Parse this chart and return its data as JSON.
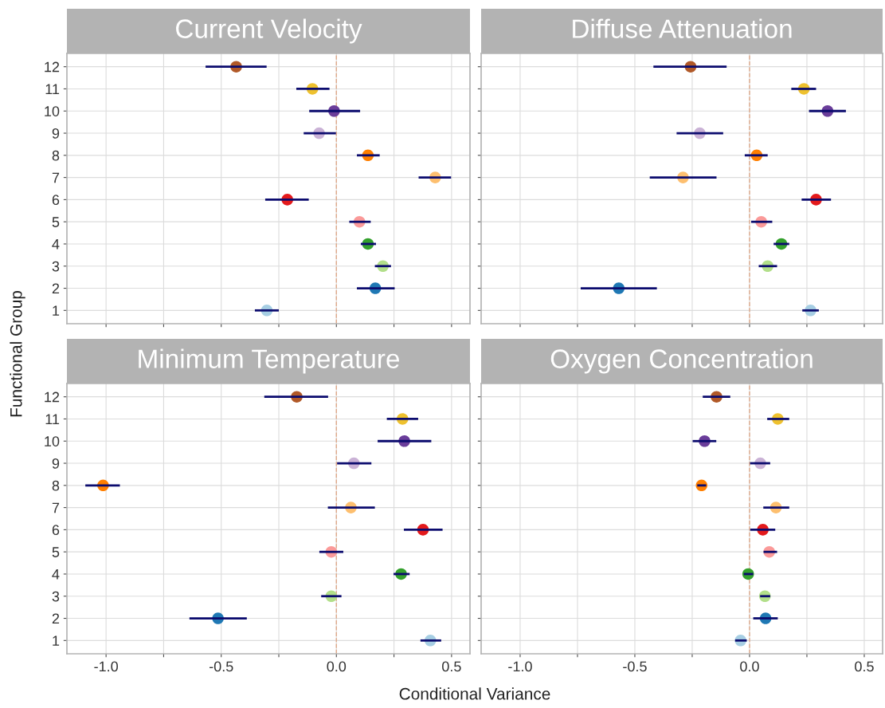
{
  "chart_data": [
    {
      "type": "scatter",
      "orientation": "horizontal",
      "title": "Current Velocity",
      "ylabel": "Functional Group",
      "tick_labels": "y",
      "grid": true,
      "marker": "circle",
      "categories": [
        "12",
        "11",
        "10",
        "9",
        "8",
        "7",
        "6",
        "5",
        "4",
        "3",
        "2",
        "1"
      ],
      "values": [
        -0.435,
        -0.104,
        -0.01,
        -0.075,
        0.137,
        0.429,
        -0.213,
        0.1,
        0.137,
        0.202,
        0.169,
        -0.302
      ],
      "errors": [
        [
          -0.568,
          -0.303
        ],
        [
          -0.174,
          -0.03
        ],
        [
          -0.118,
          0.103
        ],
        [
          -0.142,
          -0.002
        ],
        [
          0.089,
          0.188
        ],
        [
          0.357,
          0.498
        ],
        [
          -0.309,
          -0.12
        ],
        [
          0.056,
          0.149
        ],
        [
          0.106,
          0.172
        ],
        [
          0.167,
          0.237
        ],
        [
          0.089,
          0.253
        ],
        [
          -0.354,
          -0.25
        ]
      ],
      "colors": [
        "#b15928",
        "#eec12e",
        "#6a3d9a",
        "#cab2d6",
        "#ff7f00",
        "#fdbf6f",
        "#e31a1c",
        "#fb9a99",
        "#33a02c",
        "#b2df8a",
        "#1f78b4",
        "#a6cee3"
      ],
      "xlim": [
        -1.17,
        0.58
      ],
      "xticks": [
        {
          "value": -1.0,
          "label": null
        },
        {
          "value": -0.75,
          "label": null
        },
        {
          "value": -0.5,
          "label": null
        },
        {
          "value": -0.25,
          "label": null
        },
        {
          "value": 0.0,
          "label": null
        },
        {
          "value": 0.25,
          "label": null
        },
        {
          "value": 0.5,
          "label": null
        }
      ],
      "ref_lines": [
        {
          "axis": "x",
          "value": 0,
          "color": "#dfa98a",
          "line_style": "dashed"
        }
      ]
    },
    {
      "type": "scatter",
      "orientation": "horizontal",
      "title": "Diffuse Attenuation",
      "tick_labels": false,
      "grid": true,
      "marker": "circle",
      "categories": [
        "12",
        "11",
        "10",
        "9",
        "8",
        "7",
        "6",
        "5",
        "4",
        "3",
        "2",
        "1"
      ],
      "values": [
        -0.257,
        0.237,
        0.34,
        -0.217,
        0.031,
        -0.29,
        0.29,
        0.051,
        0.139,
        0.079,
        -0.57,
        0.266
      ],
      "errors": [
        [
          -0.419,
          -0.1
        ],
        [
          0.182,
          0.29
        ],
        [
          0.259,
          0.42
        ],
        [
          -0.318,
          -0.115
        ],
        [
          -0.021,
          0.079
        ],
        [
          -0.435,
          -0.144
        ],
        [
          0.227,
          0.355
        ],
        [
          0.007,
          0.099
        ],
        [
          0.105,
          0.173
        ],
        [
          0.04,
          0.12
        ],
        [
          -0.736,
          -0.404
        ],
        [
          0.23,
          0.302
        ]
      ],
      "colors": [
        "#b15928",
        "#eec12e",
        "#6a3d9a",
        "#cab2d6",
        "#ff7f00",
        "#fdbf6f",
        "#e31a1c",
        "#fb9a99",
        "#33a02c",
        "#b2df8a",
        "#1f78b4",
        "#a6cee3"
      ],
      "xlim": [
        -1.17,
        0.58
      ],
      "xticks": [
        {
          "value": -1.0,
          "label": null
        },
        {
          "value": -0.75,
          "label": null
        },
        {
          "value": -0.5,
          "label": null
        },
        {
          "value": -0.25,
          "label": null
        },
        {
          "value": 0.0,
          "label": null
        },
        {
          "value": 0.25,
          "label": null
        },
        {
          "value": 0.5,
          "label": null
        }
      ],
      "ref_lines": [
        {
          "axis": "x",
          "value": 0,
          "color": "#dfa98a",
          "line_style": "dashed"
        }
      ]
    },
    {
      "type": "scatter",
      "orientation": "horizontal",
      "title": "Minimum Temperature",
      "xlabel": "Conditional Variance",
      "grid": true,
      "marker": "circle",
      "categories": [
        "12",
        "11",
        "10",
        "9",
        "8",
        "7",
        "6",
        "5",
        "4",
        "3",
        "2",
        "1"
      ],
      "values": [
        -0.172,
        0.287,
        0.295,
        0.076,
        -1.013,
        0.063,
        0.376,
        -0.022,
        0.281,
        -0.022,
        -0.514,
        0.408
      ],
      "errors": [
        [
          -0.313,
          -0.036
        ],
        [
          0.219,
          0.355
        ],
        [
          0.179,
          0.412
        ],
        [
          0.003,
          0.152
        ],
        [
          -1.09,
          -0.94
        ],
        [
          -0.037,
          0.167
        ],
        [
          0.293,
          0.461
        ],
        [
          -0.074,
          0.03
        ],
        [
          0.248,
          0.318
        ],
        [
          -0.066,
          0.022
        ],
        [
          -0.638,
          -0.389
        ],
        [
          0.365,
          0.455
        ]
      ],
      "colors": [
        "#b15928",
        "#eec12e",
        "#6a3d9a",
        "#cab2d6",
        "#ff7f00",
        "#fdbf6f",
        "#e31a1c",
        "#fb9a99",
        "#33a02c",
        "#b2df8a",
        "#1f78b4",
        "#a6cee3"
      ],
      "xlim": [
        -1.17,
        0.58
      ],
      "xticks": [
        {
          "value": -1.0,
          "label": "-1.0"
        },
        {
          "value": -0.75,
          "label": null
        },
        {
          "value": -0.5,
          "label": "-0.5"
        },
        {
          "value": -0.25,
          "label": null
        },
        {
          "value": 0.0,
          "label": "0.0"
        },
        {
          "value": 0.25,
          "label": null
        },
        {
          "value": 0.5,
          "label": "0.5"
        }
      ],
      "ref_lines": [
        {
          "axis": "x",
          "value": 0,
          "color": "#dfa98a",
          "line_style": "dashed"
        }
      ]
    },
    {
      "type": "scatter",
      "orientation": "horizontal",
      "title": "Oxygen Concentration",
      "tick_labels": "x",
      "grid": true,
      "marker": "circle",
      "categories": [
        "12",
        "11",
        "10",
        "9",
        "8",
        "7",
        "6",
        "5",
        "4",
        "3",
        "2",
        "1"
      ],
      "values": [
        -0.144,
        0.123,
        -0.196,
        0.047,
        -0.209,
        0.115,
        0.058,
        0.086,
        -0.006,
        0.067,
        0.07,
        -0.039
      ],
      "errors": [
        [
          -0.204,
          -0.084
        ],
        [
          0.077,
          0.173
        ],
        [
          -0.248,
          -0.145
        ],
        [
          0.002,
          0.09
        ],
        [
          -0.228,
          -0.189
        ],
        [
          0.06,
          0.173
        ],
        [
          0.003,
          0.112
        ],
        [
          0.061,
          0.12
        ],
        [
          -0.025,
          0.016
        ],
        [
          0.046,
          0.09
        ],
        [
          0.016,
          0.123
        ],
        [
          -0.063,
          -0.012
        ]
      ],
      "colors": [
        "#b15928",
        "#eec12e",
        "#6a3d9a",
        "#cab2d6",
        "#ff7f00",
        "#fdbf6f",
        "#e31a1c",
        "#fb9a99",
        "#33a02c",
        "#b2df8a",
        "#1f78b4",
        "#a6cee3"
      ],
      "xlim": [
        -1.17,
        0.58
      ],
      "xticks": [
        {
          "value": -1.0,
          "label": "-1.0"
        },
        {
          "value": -0.75,
          "label": null
        },
        {
          "value": -0.5,
          "label": "-0.5"
        },
        {
          "value": -0.25,
          "label": null
        },
        {
          "value": 0.0,
          "label": "0.0"
        },
        {
          "value": 0.25,
          "label": null
        },
        {
          "value": 0.5,
          "label": "0.5"
        }
      ],
      "ref_lines": [
        {
          "axis": "x",
          "value": 0,
          "color": "#dfa98a",
          "line_style": "dashed"
        }
      ]
    }
  ]
}
